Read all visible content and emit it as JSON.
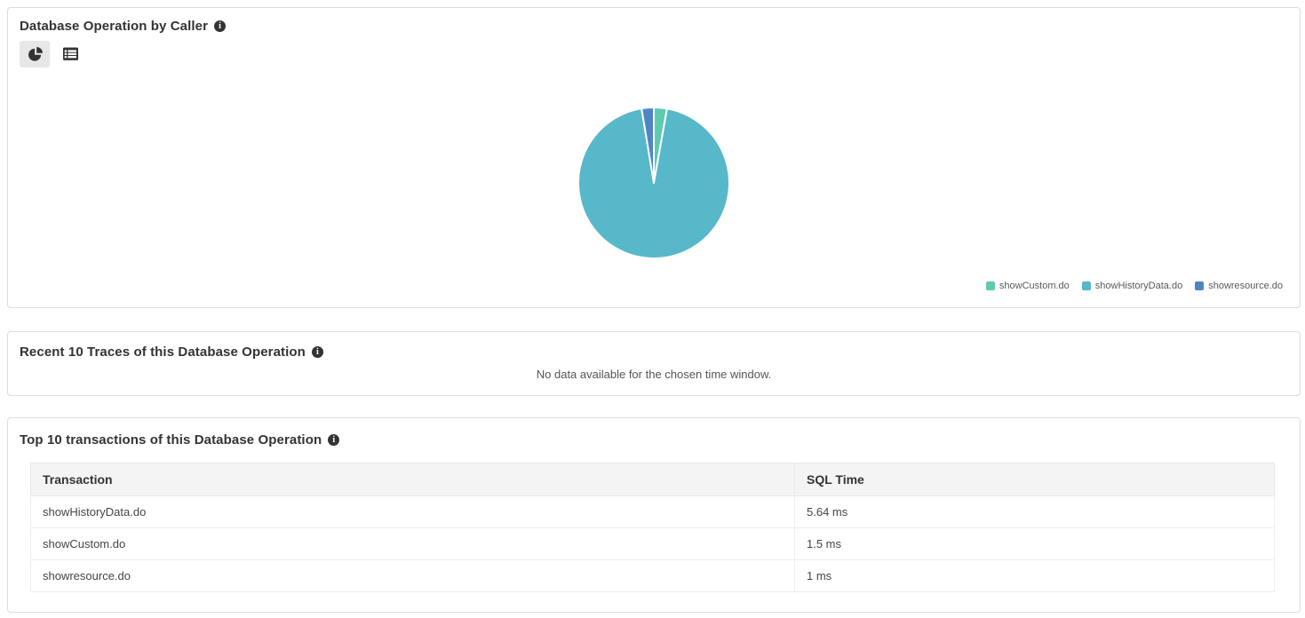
{
  "glyphs": {
    "info": "i"
  },
  "caller_panel": {
    "title": "Database Operation by Caller",
    "toolbar": {
      "pie_view_icon": "pie-chart-icon",
      "table_view_icon": "table-icon",
      "active_view": "pie"
    }
  },
  "chart_data": {
    "type": "pie",
    "title": "Database Operation by Caller",
    "categories": [
      "showCustom.do",
      "showHistoryData.do",
      "showresource.do"
    ],
    "values": [
      2.8,
      94.6,
      2.6
    ],
    "unit": "percent (estimated from slice angles)",
    "colors": [
      "#5DCBB0",
      "#57B8C9",
      "#4E86C3"
    ],
    "legend_position": "bottom-right",
    "start_angle_deg": 0,
    "direction": "clockwise",
    "stroke_color": "#ffffff"
  },
  "traces_panel": {
    "title": "Recent 10 Traces of this Database Operation",
    "empty_message": "No data available for the chosen time window."
  },
  "transactions_panel": {
    "title": "Top 10 transactions of this Database Operation",
    "table": {
      "columns": [
        "Transaction",
        "SQL Time"
      ],
      "rows": [
        {
          "transaction": "showHistoryData.do",
          "sql_time": "5.64 ms"
        },
        {
          "transaction": "showCustom.do",
          "sql_time": "1.5 ms"
        },
        {
          "transaction": "showresource.do",
          "sql_time": "1 ms"
        }
      ]
    }
  }
}
